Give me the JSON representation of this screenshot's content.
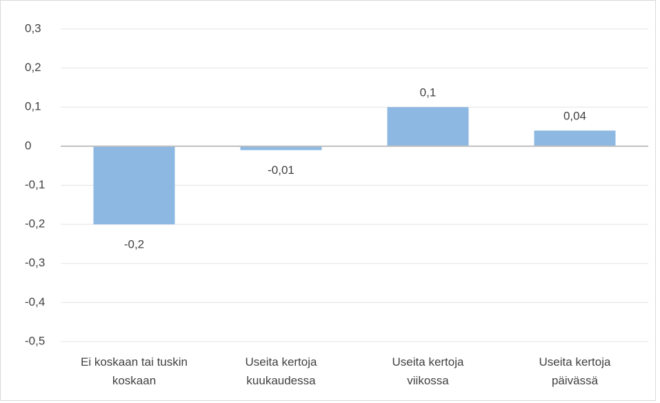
{
  "chart_data": {
    "type": "bar",
    "categories": [
      "Ei koskaan tai tuskin koskaan",
      "Useita kertoja kuukaudessa",
      "Useita kertoja viikossa",
      "Useita kertoja päivässä"
    ],
    "values": [
      -0.2,
      -0.01,
      0.1,
      0.04
    ],
    "value_labels": [
      "-0,2",
      "-0,01",
      "0,1",
      "0,04"
    ],
    "color": "#8db8e2",
    "ylim": [
      -0.5,
      0.3
    ],
    "yticks": [
      {
        "value": -0.5,
        "label": "-0,5"
      },
      {
        "value": -0.4,
        "label": "-0,4"
      },
      {
        "value": -0.3,
        "label": "-0,3"
      },
      {
        "value": -0.2,
        "label": "-0,2"
      },
      {
        "value": -0.1,
        "label": "-0,1"
      },
      0,
      {
        "value": 0.1,
        "label": "0,1"
      },
      {
        "value": 0.2,
        "label": "0,2"
      },
      {
        "value": 0.3,
        "label": "0,3"
      }
    ],
    "grid": true
  }
}
